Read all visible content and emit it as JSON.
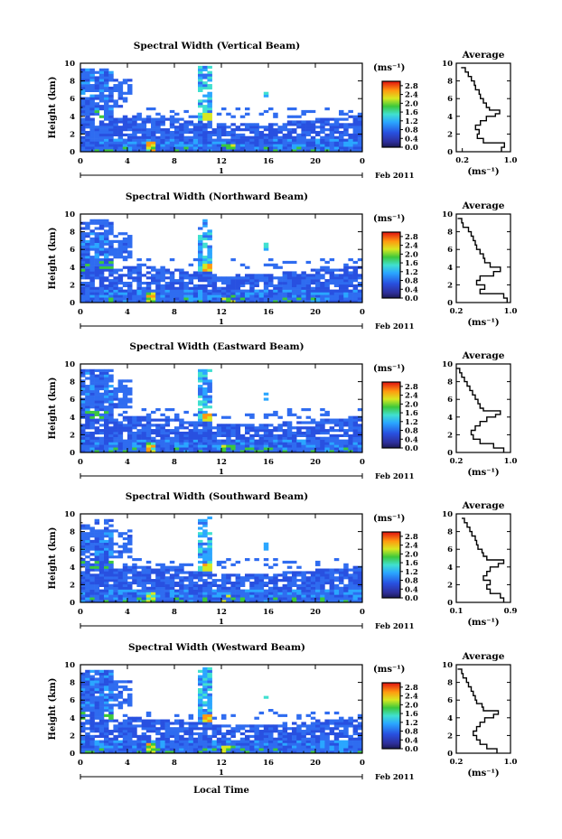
{
  "figure": {
    "xlabel_bottom": "Local Time",
    "date_label": "Feb 2011",
    "day_marker": "1",
    "avg_title": "Average"
  },
  "chart_data": [
    {
      "type": "heatmap",
      "title": "Spectral Width (Vertical Beam)",
      "ylabel": "Height (km)",
      "xlim": [
        0,
        24
      ],
      "ylim": [
        0,
        10
      ],
      "xticks": [
        "0",
        "4",
        "8",
        "12",
        "16",
        "20",
        "0"
      ],
      "yticks": [
        "0",
        "2",
        "4",
        "6",
        "8",
        "10"
      ],
      "colorbar": {
        "unit": "(ms⁻¹)",
        "ticks": [
          "0.0",
          "0.4",
          "0.8",
          "1.2",
          "1.6",
          "2.0",
          "2.4",
          "2.8"
        ],
        "range": [
          0,
          3.0
        ]
      },
      "average_profile": {
        "title": "Average",
        "unit": "(ms⁻¹)",
        "xlim": [
          0.1,
          1.0
        ],
        "xticks": [
          "0.2",
          "1.0"
        ],
        "height_km": [
          0.2,
          0.5,
          1.0,
          1.5,
          2.0,
          2.5,
          3.0,
          3.5,
          4.0,
          4.3,
          4.7,
          5.0,
          5.5,
          6.0,
          6.5,
          7.0,
          7.5,
          8.0,
          8.5,
          9.0,
          9.5
        ],
        "value": [
          0.85,
          0.9,
          0.55,
          0.45,
          0.48,
          0.42,
          0.5,
          0.6,
          0.75,
          0.82,
          0.65,
          0.6,
          0.55,
          0.5,
          0.48,
          0.42,
          0.4,
          0.35,
          0.3,
          0.25,
          0.18
        ]
      }
    },
    {
      "type": "heatmap",
      "title": "Spectral Width (Northward Beam)",
      "ylabel": "Height (km)",
      "xlim": [
        0,
        24
      ],
      "ylim": [
        0,
        10
      ],
      "xticks": [
        "0",
        "4",
        "8",
        "12",
        "16",
        "20",
        "0"
      ],
      "yticks": [
        "0",
        "2",
        "4",
        "6",
        "8",
        "10"
      ],
      "colorbar": {
        "unit": "(ms⁻¹)",
        "ticks": [
          "0.0",
          "0.4",
          "0.8",
          "1.2",
          "1.6",
          "2.0",
          "2.4",
          "2.8"
        ],
        "range": [
          0,
          3.0
        ]
      },
      "average_profile": {
        "title": "Average",
        "unit": "(ms⁻¹)",
        "xlim": [
          0.2,
          1.0
        ],
        "xticks": [
          "0.2",
          "1.0"
        ],
        "height_km": [
          0.2,
          0.5,
          1.0,
          1.5,
          2.0,
          2.5,
          3.0,
          3.5,
          4.0,
          4.5,
          5.0,
          5.5,
          6.0,
          6.5,
          7.0,
          7.5,
          8.0,
          8.5,
          9.0,
          9.5
        ],
        "value": [
          0.95,
          0.9,
          0.55,
          0.62,
          0.5,
          0.55,
          0.75,
          0.85,
          0.7,
          0.62,
          0.6,
          0.55,
          0.5,
          0.48,
          0.45,
          0.42,
          0.38,
          0.3,
          0.28,
          0.22
        ]
      }
    },
    {
      "type": "heatmap",
      "title": "Spectral Width (Eastward Beam)",
      "ylabel": "Height (km)",
      "xlim": [
        0,
        24
      ],
      "ylim": [
        0,
        10
      ],
      "xticks": [
        "0",
        "4",
        "8",
        "12",
        "16",
        "20",
        "0"
      ],
      "yticks": [
        "0",
        "2",
        "4",
        "6",
        "8",
        "10"
      ],
      "colorbar": {
        "unit": "(ms⁻¹)",
        "ticks": [
          "0.0",
          "0.4",
          "0.8",
          "1.2",
          "1.6",
          "2.0",
          "2.4",
          "2.8"
        ],
        "range": [
          0,
          3.0
        ]
      },
      "average_profile": {
        "title": "Average",
        "unit": "(ms⁻¹)",
        "xlim": [
          0.2,
          1.0
        ],
        "xticks": [
          "0.2",
          "1.0"
        ],
        "height_km": [
          0.2,
          0.5,
          1.0,
          1.5,
          2.0,
          2.5,
          3.0,
          3.5,
          4.0,
          4.3,
          4.7,
          5.0,
          5.5,
          6.0,
          6.5,
          7.0,
          7.5,
          8.0,
          8.5,
          9.0,
          9.5
        ],
        "value": [
          0.9,
          0.75,
          0.55,
          0.45,
          0.42,
          0.48,
          0.55,
          0.65,
          0.78,
          0.85,
          0.6,
          0.55,
          0.52,
          0.48,
          0.44,
          0.4,
          0.36,
          0.32,
          0.28,
          0.25,
          0.2
        ]
      }
    },
    {
      "type": "heatmap",
      "title": "Spectral Width (Southward Beam)",
      "ylabel": "Height (km)",
      "xlim": [
        0,
        24
      ],
      "ylim": [
        0,
        10
      ],
      "xticks": [
        "0",
        "4",
        "8",
        "12",
        "16",
        "20",
        "0"
      ],
      "yticks": [
        "0",
        "2",
        "4",
        "6",
        "8",
        "10"
      ],
      "colorbar": {
        "unit": "(ms⁻¹)",
        "ticks": [
          "0.0",
          "0.4",
          "0.8",
          "1.2",
          "1.6",
          "2.0",
          "2.4",
          "2.8"
        ],
        "range": [
          0,
          3.0
        ]
      },
      "average_profile": {
        "title": "Average",
        "unit": "(ms⁻¹)",
        "xlim": [
          0.1,
          0.9
        ],
        "xticks": [
          "0.1",
          "0.9"
        ],
        "height_km": [
          0.2,
          0.5,
          1.0,
          1.5,
          2.0,
          2.5,
          3.0,
          3.5,
          4.0,
          4.4,
          4.8,
          5.2,
          5.6,
          6.0,
          6.5,
          7.0,
          7.5,
          8.0,
          8.5,
          9.0,
          9.5
        ],
        "value": [
          0.8,
          0.75,
          0.6,
          0.55,
          0.6,
          0.5,
          0.55,
          0.6,
          0.72,
          0.8,
          0.55,
          0.5,
          0.48,
          0.42,
          0.4,
          0.38,
          0.33,
          0.3,
          0.26,
          0.22,
          0.18
        ]
      }
    },
    {
      "type": "heatmap",
      "title": "Spectral Width (Westward Beam)",
      "ylabel": "Height (km)",
      "xlabel": "Local Time",
      "xlim": [
        0,
        24
      ],
      "ylim": [
        0,
        10
      ],
      "xticks": [
        "0",
        "4",
        "8",
        "12",
        "16",
        "20",
        "0"
      ],
      "yticks": [
        "0",
        "2",
        "4",
        "6",
        "8",
        "10"
      ],
      "colorbar": {
        "unit": "(ms⁻¹)",
        "ticks": [
          "0.0",
          "0.4",
          "0.8",
          "1.2",
          "1.6",
          "2.0",
          "2.4",
          "2.8"
        ],
        "range": [
          0,
          3.0
        ]
      },
      "average_profile": {
        "title": "Average",
        "unit": "(ms⁻¹)",
        "xlim": [
          0.2,
          1.0
        ],
        "xticks": [
          "0.2",
          "1.0"
        ],
        "height_km": [
          0.2,
          0.5,
          1.0,
          1.5,
          2.0,
          2.5,
          3.0,
          3.5,
          4.0,
          4.4,
          4.8,
          5.2,
          5.6,
          6.0,
          6.5,
          7.0,
          7.5,
          8.0,
          8.5,
          9.0,
          9.5
        ],
        "value": [
          0.8,
          0.65,
          0.55,
          0.5,
          0.45,
          0.5,
          0.55,
          0.62,
          0.75,
          0.82,
          0.6,
          0.58,
          0.5,
          0.48,
          0.45,
          0.42,
          0.38,
          0.35,
          0.3,
          0.28,
          0.22
        ]
      }
    }
  ]
}
